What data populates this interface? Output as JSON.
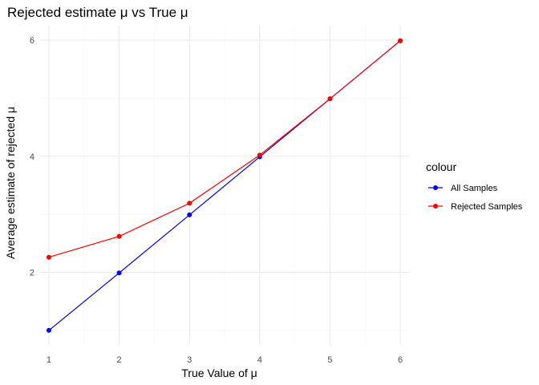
{
  "chart_data": {
    "type": "line",
    "title": "Rejected estimate μ vs True μ",
    "xlabel": "True Value of μ",
    "ylabel": "Average estimate of rejected μ",
    "x": [
      1,
      2,
      3,
      4,
      5,
      6
    ],
    "xlim": [
      0.875,
      6.125
    ],
    "ylim": [
      0.75,
      6.25
    ],
    "x_ticks": [
      1,
      2,
      3,
      4,
      5,
      6
    ],
    "x_tick_labels": [
      "1",
      "2",
      "3",
      "4",
      "5",
      "6"
    ],
    "y_ticks": [
      2,
      4,
      6
    ],
    "y_tick_labels": [
      "2",
      "4",
      "6"
    ],
    "grid": true,
    "legend": {
      "title": "colour",
      "placement": "right"
    },
    "series": [
      {
        "name": "All Samples",
        "color": "#0000ff",
        "values": [
          1.0,
          1.99,
          2.99,
          3.99,
          4.99,
          5.99
        ]
      },
      {
        "name": "Rejected Samples",
        "color": "#ff0000",
        "values": [
          2.26,
          2.62,
          3.19,
          4.02,
          4.99,
          5.99
        ]
      }
    ]
  }
}
